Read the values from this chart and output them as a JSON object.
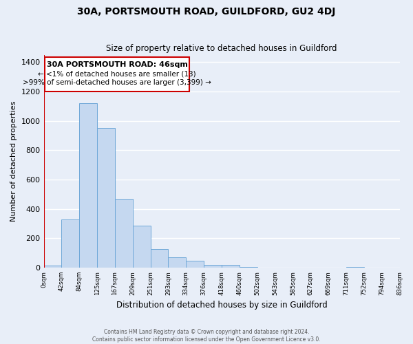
{
  "title": "30A, PORTSMOUTH ROAD, GUILDFORD, GU2 4DJ",
  "subtitle": "Size of property relative to detached houses in Guildford",
  "xlabel": "Distribution of detached houses by size in Guildford",
  "ylabel": "Number of detached properties",
  "bar_color": "#c5d8f0",
  "bar_edge_color": "#6fa8d8",
  "background_color": "#e8eef8",
  "grid_color": "#ffffff",
  "annotation_box_color": "#ffffff",
  "annotation_box_edge": "#cc0000",
  "vline_color": "#cc0000",
  "bin_labels": [
    "0sqm",
    "42sqm",
    "84sqm",
    "125sqm",
    "167sqm",
    "209sqm",
    "251sqm",
    "293sqm",
    "334sqm",
    "376sqm",
    "418sqm",
    "460sqm",
    "502sqm",
    "543sqm",
    "585sqm",
    "627sqm",
    "669sqm",
    "711sqm",
    "752sqm",
    "794sqm",
    "836sqm"
  ],
  "bar_heights": [
    13,
    330,
    1120,
    950,
    470,
    285,
    125,
    70,
    45,
    20,
    20,
    5,
    0,
    0,
    0,
    0,
    0,
    5,
    0,
    0
  ],
  "ylim": [
    0,
    1450
  ],
  "yticks": [
    0,
    200,
    400,
    600,
    800,
    1000,
    1200,
    1400
  ],
  "vline_x_index": 0,
  "annotation_text_line1": "30A PORTSMOUTH ROAD: 46sqm",
  "annotation_text_line2": "← <1% of detached houses are smaller (13)",
  "annotation_text_line3": ">99% of semi-detached houses are larger (3,399) →",
  "footer_line1": "Contains HM Land Registry data © Crown copyright and database right 2024.",
  "footer_line2": "Contains public sector information licensed under the Open Government Licence v3.0."
}
